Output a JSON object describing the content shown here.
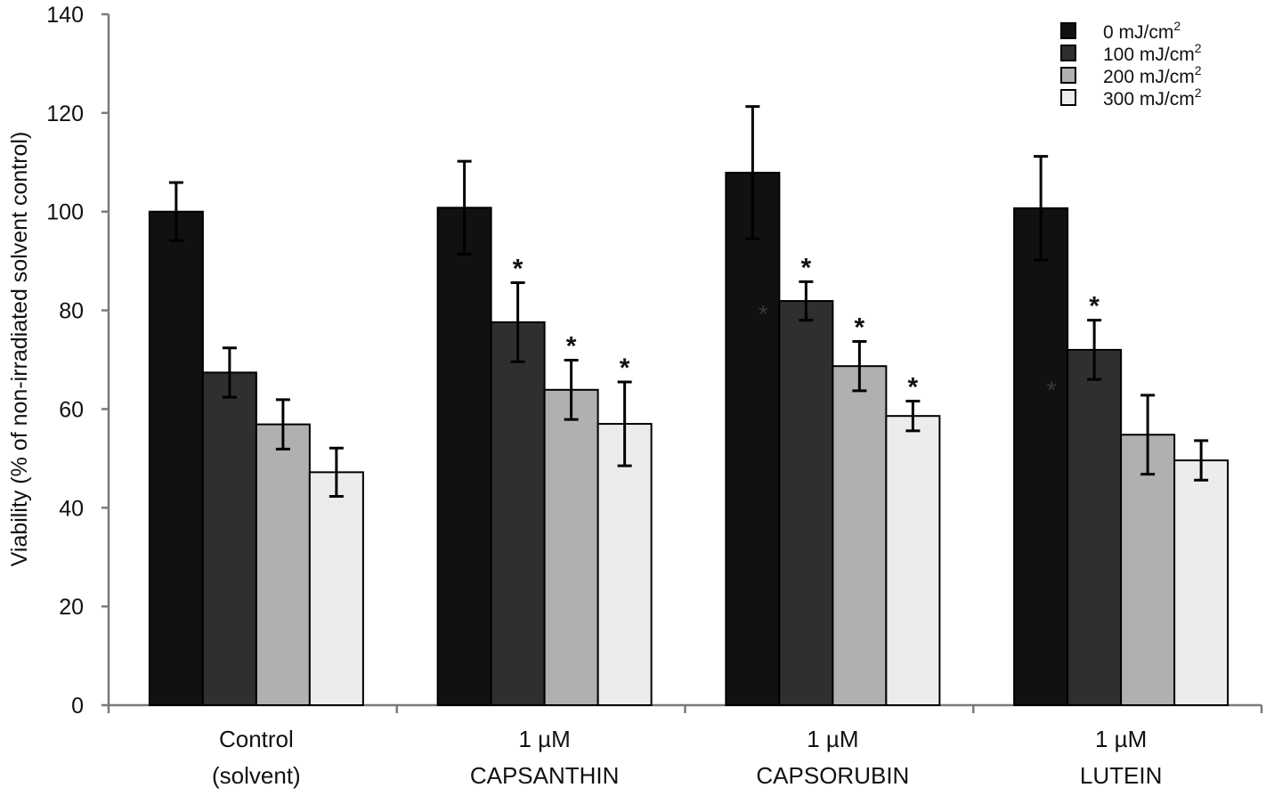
{
  "chart_data": {
    "type": "bar",
    "title": "",
    "xlabel": "",
    "ylabel": "Viability (% of non-irradiated solvent control)",
    "ylim": [
      0,
      140
    ],
    "yticks": [
      0,
      20,
      40,
      60,
      80,
      100,
      120,
      140
    ],
    "grid": false,
    "legend_position": "top-right",
    "categories": [
      {
        "line1": "Control",
        "line2": "(solvent)"
      },
      {
        "line1": "1 µM",
        "line2": "CAPSANTHIN"
      },
      {
        "line1": "1 µM",
        "line2": "CAPSORUBIN"
      },
      {
        "line1": "1 µM",
        "line2": "LUTEIN"
      }
    ],
    "series": [
      {
        "name": "0 mJ/cm",
        "sup": "2",
        "color": "#111111",
        "values": [
          100.0,
          100.8,
          107.9,
          100.7
        ],
        "errors": [
          5.9,
          9.4,
          13.4,
          10.5
        ],
        "significant": [
          false,
          false,
          false,
          false
        ]
      },
      {
        "name": "100 mJ/cm",
        "sup": "2",
        "color": "#2f2f2f",
        "values": [
          67.4,
          77.6,
          81.9,
          72.0
        ],
        "errors": [
          5.0,
          8.0,
          3.9,
          6.0
        ],
        "significant": [
          false,
          true,
          true,
          true
        ]
      },
      {
        "name": "200 mJ/cm",
        "sup": "2",
        "color": "#b0b0b0",
        "values": [
          56.9,
          63.9,
          68.7,
          54.8
        ],
        "errors": [
          5.0,
          6.0,
          5.0,
          8.0
        ],
        "significant": [
          false,
          true,
          true,
          false
        ]
      },
      {
        "name": "300 mJ/cm",
        "sup": "2",
        "color": "#ececec",
        "values": [
          47.2,
          57.0,
          58.6,
          49.6
        ],
        "errors": [
          4.9,
          8.5,
          3.0,
          4.0
        ],
        "significant": [
          false,
          true,
          true,
          false
        ]
      }
    ],
    "faint_markers": [
      {
        "category": 2,
        "series": 0,
        "value": 80.5,
        "text": "*"
      },
      {
        "category": 3,
        "series": 0,
        "value": 65.0,
        "text": "*"
      }
    ],
    "significance_marker": "*"
  }
}
